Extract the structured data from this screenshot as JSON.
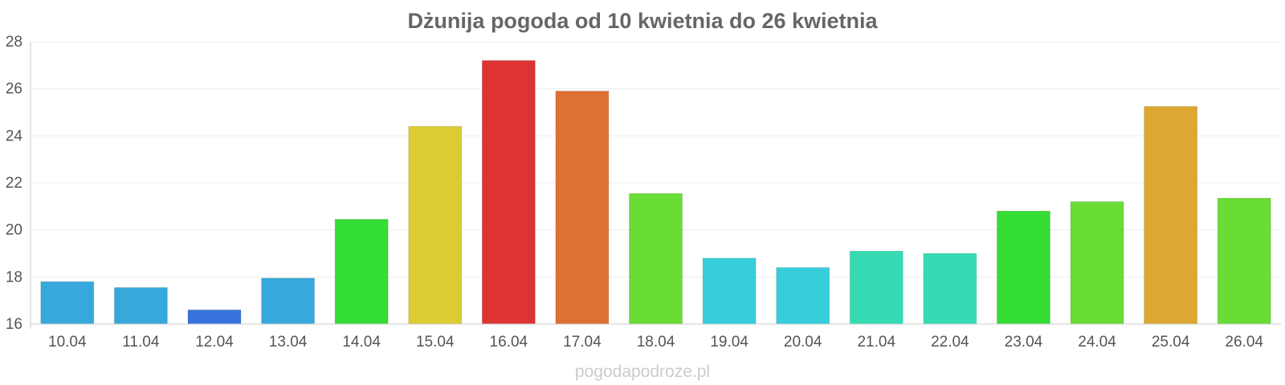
{
  "chart_data": {
    "type": "bar",
    "title": "Dżunija pogoda od 10 kwietnia do 26 kwietnia",
    "xlabel": "",
    "ylabel": "",
    "ylim": [
      16,
      28
    ],
    "yticks": [
      "16",
      "18",
      "20",
      "22",
      "24",
      "26",
      "28"
    ],
    "categories": [
      "10.04",
      "11.04",
      "12.04",
      "13.04",
      "14.04",
      "15.04",
      "16.04",
      "17.04",
      "18.04",
      "19.04",
      "20.04",
      "21.04",
      "22.04",
      "23.04",
      "24.04",
      "25.04",
      "26.04"
    ],
    "values": [
      17.8,
      17.55,
      16.6,
      17.95,
      20.45,
      24.4,
      27.2,
      25.9,
      21.55,
      18.8,
      18.4,
      19.1,
      19.0,
      20.8,
      21.2,
      25.25,
      21.35
    ],
    "colors": [
      "#36a8db",
      "#36a8db",
      "#3674db",
      "#36a8db",
      "#33dd33",
      "#dccb33",
      "#dd3333",
      "#dd7033",
      "#69dd36",
      "#36cedb",
      "#36cedb",
      "#36dbb4",
      "#36dbb4",
      "#33dd33",
      "#69dd36",
      "#dca733",
      "#69dd36"
    ],
    "grid": true,
    "legend": "none"
  },
  "watermark": "pogodapodroze.pl"
}
